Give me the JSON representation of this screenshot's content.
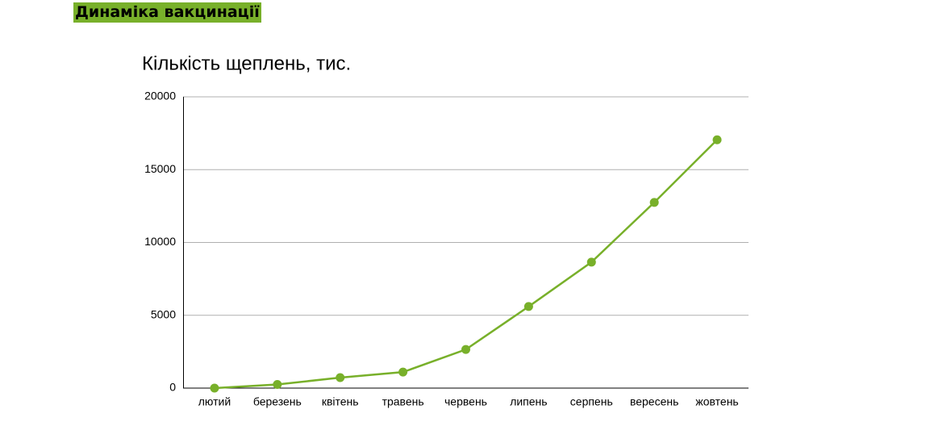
{
  "header": {
    "title": "Динаміка вакцинації"
  },
  "chart_data": {
    "type": "line",
    "title": "Кількість щеплень, тис.",
    "categories": [
      "лютий",
      "березень",
      "квітень",
      "травень",
      "червень",
      "липень",
      "серпень",
      "вересень",
      "жовтень"
    ],
    "series": [
      {
        "name": "Кількість щеплень, тис.",
        "color": "#78b02a",
        "values": [
          0,
          250,
          720,
          1100,
          2650,
          5600,
          8650,
          12750,
          17050
        ]
      }
    ],
    "ylim": [
      0,
      20000
    ],
    "yticks": [
      0,
      5000,
      10000,
      15000,
      20000
    ],
    "grid": true
  }
}
